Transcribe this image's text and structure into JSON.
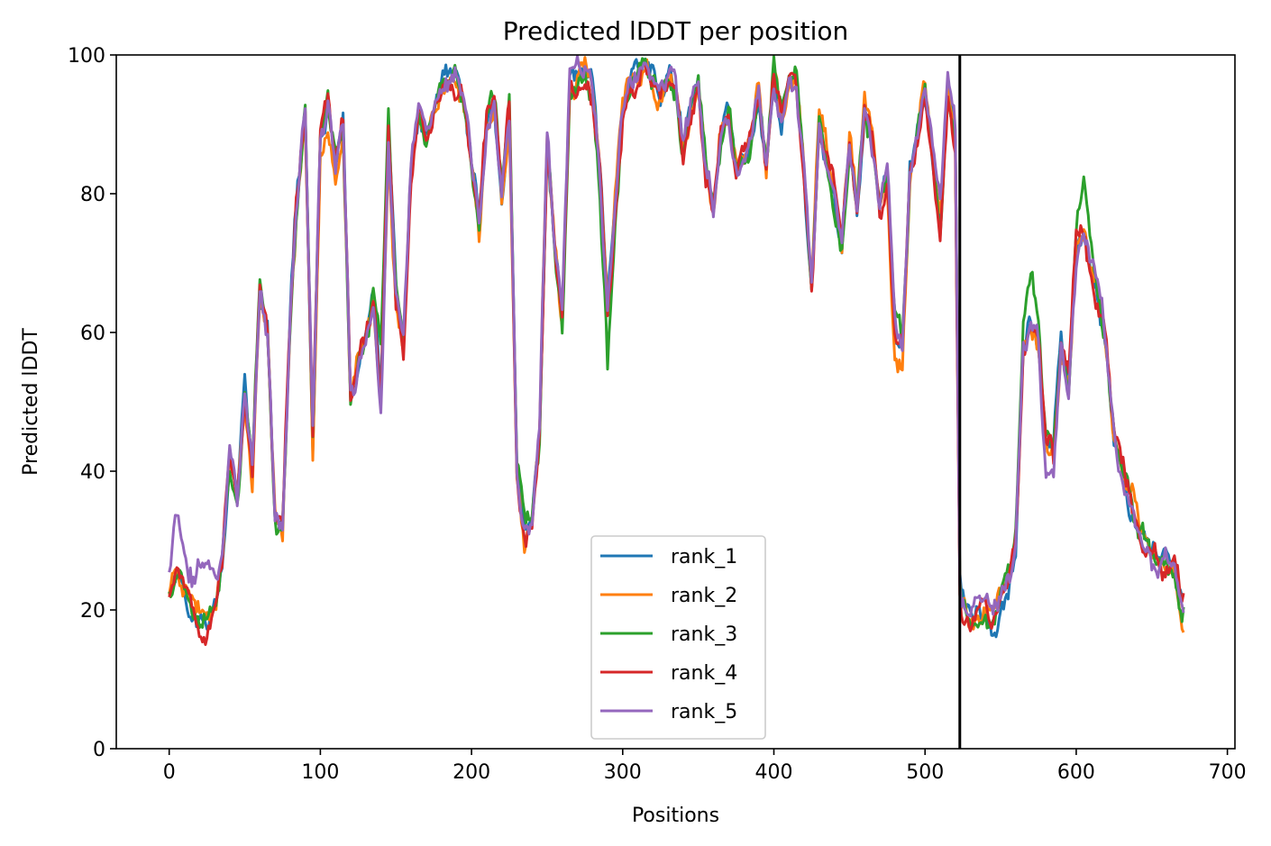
{
  "chart_data": {
    "type": "line",
    "title": "Predicted lDDT per position",
    "xlabel": "Positions",
    "ylabel": "Predicted lDDT",
    "xlim": [
      -35,
      705
    ],
    "ylim": [
      0,
      100
    ],
    "xticks": [
      0,
      100,
      200,
      300,
      400,
      500,
      600,
      700
    ],
    "yticks": [
      0,
      20,
      40,
      60,
      80,
      100
    ],
    "grid": false,
    "legend_position": "lower center",
    "chain_break": 523,
    "base_profile": {
      "x": [
        0,
        5,
        10,
        15,
        20,
        25,
        30,
        35,
        40,
        45,
        50,
        55,
        60,
        65,
        70,
        75,
        80,
        85,
        90,
        95,
        100,
        105,
        110,
        115,
        120,
        125,
        130,
        135,
        140,
        145,
        150,
        155,
        160,
        165,
        170,
        175,
        180,
        185,
        190,
        195,
        200,
        205,
        210,
        215,
        220,
        225,
        230,
        235,
        240,
        245,
        250,
        255,
        260,
        265,
        270,
        275,
        280,
        285,
        290,
        295,
        300,
        305,
        310,
        315,
        320,
        325,
        330,
        335,
        340,
        345,
        350,
        355,
        360,
        365,
        370,
        375,
        380,
        385,
        390,
        395,
        400,
        405,
        410,
        415,
        420,
        425,
        430,
        435,
        440,
        445,
        450,
        455,
        460,
        465,
        470,
        475,
        480,
        485,
        490,
        495,
        500,
        505,
        510,
        515,
        520,
        523,
        524,
        530,
        535,
        540,
        545,
        550,
        555,
        560,
        565,
        570,
        575,
        580,
        585,
        590,
        595,
        600,
        605,
        610,
        615,
        620,
        625,
        630,
        635,
        640,
        645,
        650,
        655,
        660,
        665,
        670
      ],
      "y": [
        23,
        27,
        25,
        22,
        21,
        20,
        23,
        28,
        43,
        37,
        52,
        40,
        66,
        60,
        33,
        32,
        62,
        80,
        92,
        45,
        88,
        92,
        84,
        90,
        50,
        55,
        58,
        64,
        49,
        88,
        65,
        57,
        83,
        93,
        88,
        93,
        95,
        96,
        96,
        93,
        84,
        75,
        90,
        93,
        80,
        92,
        40,
        30,
        32,
        45,
        87,
        73,
        62,
        96,
        97,
        97,
        95,
        83,
        62,
        78,
        92,
        96,
        97,
        98,
        96,
        93,
        97,
        95,
        86,
        92,
        95,
        82,
        77,
        88,
        92,
        84,
        85,
        88,
        94,
        84,
        97,
        91,
        96,
        95,
        82,
        66,
        90,
        85,
        80,
        72,
        88,
        78,
        92,
        88,
        77,
        82,
        60,
        58,
        82,
        88,
        95,
        85,
        76,
        95,
        88,
        25,
        21,
        19,
        20,
        21,
        19,
        22,
        25,
        30,
        58,
        62,
        58,
        45,
        42,
        58,
        52,
        72,
        75,
        70,
        65,
        58,
        45,
        40,
        36,
        32,
        30,
        28,
        27,
        27,
        26,
        20
      ]
    },
    "series": [
      {
        "name": "rank_1",
        "color": "#1f77b4",
        "seed": 11,
        "offset": [
          [
            15,
            -4
          ],
          [
            25,
            -3
          ],
          [
            645,
            2
          ],
          [
            655,
            3
          ]
        ]
      },
      {
        "name": "rank_2",
        "color": "#ff7f0e",
        "seed": 23,
        "offset": [
          [
            95,
            -3
          ],
          [
            240,
            -2
          ],
          [
            480,
            -3
          ]
        ]
      },
      {
        "name": "rank_3",
        "color": "#2ca02c",
        "seed": 37,
        "offset": [
          [
            140,
            8
          ],
          [
            235,
            6
          ],
          [
            290,
            -6
          ],
          [
            570,
            8
          ],
          [
            605,
            7
          ]
        ]
      },
      {
        "name": "rank_4",
        "color": "#d62728",
        "seed": 53,
        "offset": [
          [
            20,
            -2
          ],
          [
            600,
            3
          ]
        ]
      },
      {
        "name": "rank_5",
        "color": "#9467bd",
        "seed": 71,
        "offset": [
          [
            5,
            7
          ],
          [
            20,
            4
          ],
          [
            25,
            5
          ],
          [
            575,
            4
          ],
          [
            580,
            -5
          ]
        ]
      }
    ]
  }
}
